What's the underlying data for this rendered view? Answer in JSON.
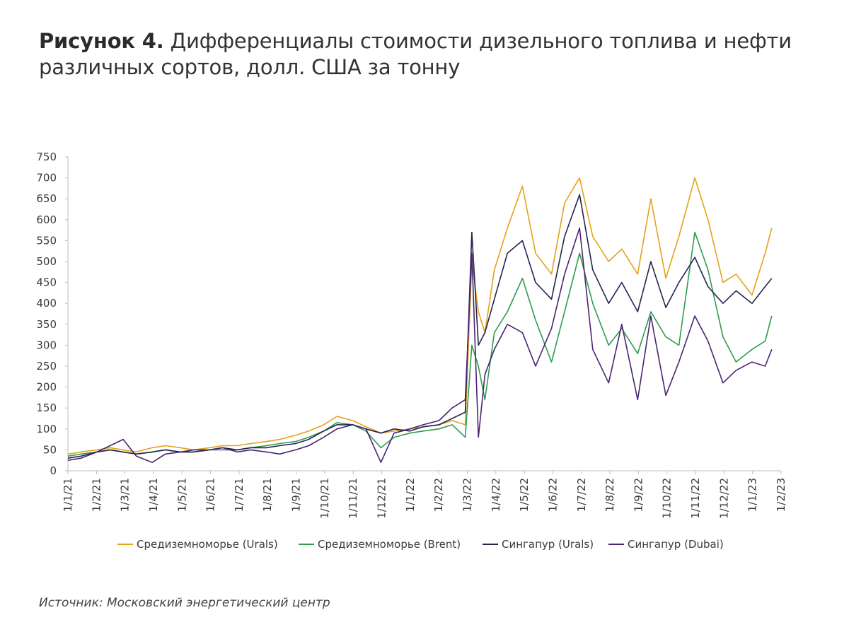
{
  "title": {
    "label": "Рисунок 4.",
    "text": "Дифференциалы стоимости дизельного топлива и нефти различных сортов, долл. США за тонну"
  },
  "source": "Источник: Московский энергетический центр",
  "chart_data": {
    "type": "line",
    "title": "Рисунок 4. Дифференциалы стоимости дизельного топлива и нефти различных сортов, долл. США за тонну",
    "xlabel": "",
    "ylabel": "",
    "ylim": [
      0,
      750
    ],
    "yticks": [
      0,
      50,
      100,
      150,
      200,
      250,
      300,
      350,
      400,
      450,
      500,
      550,
      600,
      650,
      700,
      750
    ],
    "xlim": [
      "2021-01-01",
      "2023-02-01"
    ],
    "xtick_labels": [
      "1/1/21",
      "1/2/21",
      "1/3/21",
      "1/4/21",
      "1/5/21",
      "1/6/21",
      "1/7/21",
      "1/8/21",
      "1/9/21",
      "1/10/21",
      "1/11/21",
      "1/12/21",
      "1/1/22",
      "1/2/22",
      "1/3/22",
      "1/4/22",
      "1/5/22",
      "1/6/22",
      "1/7/22",
      "1/8/22",
      "1/9/22",
      "1/10/22",
      "1/11/22",
      "1/12/22",
      "1/1/23",
      "1/2/23"
    ],
    "grid": false,
    "legend_position": "bottom",
    "x": [
      "2021-01-01",
      "2021-01-15",
      "2021-02-01",
      "2021-02-15",
      "2021-03-01",
      "2021-03-15",
      "2021-04-01",
      "2021-04-15",
      "2021-05-01",
      "2021-05-15",
      "2021-06-01",
      "2021-06-15",
      "2021-07-01",
      "2021-07-15",
      "2021-08-01",
      "2021-08-15",
      "2021-09-01",
      "2021-09-15",
      "2021-10-01",
      "2021-10-15",
      "2021-11-01",
      "2021-11-15",
      "2021-12-01",
      "2021-12-15",
      "2022-01-01",
      "2022-01-15",
      "2022-02-01",
      "2022-02-15",
      "2022-03-01",
      "2022-03-08",
      "2022-03-15",
      "2022-03-22",
      "2022-04-01",
      "2022-04-15",
      "2022-05-01",
      "2022-05-15",
      "2022-06-01",
      "2022-06-15",
      "2022-07-01",
      "2022-07-15",
      "2022-08-01",
      "2022-08-15",
      "2022-09-01",
      "2022-09-15",
      "2022-10-01",
      "2022-10-15",
      "2022-11-01",
      "2022-11-15",
      "2022-12-01",
      "2022-12-15",
      "2023-01-01",
      "2023-01-15",
      "2023-01-22"
    ],
    "series": [
      {
        "name": "Средиземноморье  (Urals)",
        "color": "#E3A21A",
        "values": [
          40,
          45,
          50,
          55,
          50,
          45,
          55,
          60,
          55,
          50,
          55,
          60,
          60,
          65,
          70,
          75,
          85,
          95,
          110,
          130,
          120,
          105,
          90,
          95,
          100,
          105,
          110,
          120,
          110,
          500,
          380,
          330,
          480,
          580,
          680,
          520,
          470,
          640,
          700,
          560,
          500,
          530,
          470,
          650,
          460,
          560,
          700,
          600,
          450,
          470,
          420,
          520,
          580
        ]
      },
      {
        "name": "Средиземноморье  (Brent)",
        "color": "#2E9C4E",
        "values": [
          35,
          40,
          45,
          50,
          45,
          40,
          45,
          50,
          45,
          45,
          50,
          50,
          50,
          55,
          60,
          65,
          70,
          80,
          95,
          115,
          110,
          95,
          55,
          80,
          90,
          95,
          100,
          110,
          80,
          300,
          250,
          170,
          330,
          380,
          460,
          360,
          260,
          380,
          520,
          400,
          300,
          340,
          280,
          380,
          320,
          300,
          570,
          480,
          320,
          260,
          290,
          310,
          370
        ]
      },
      {
        "name": "Сингапур  (Urals)",
        "color": "#23254D",
        "values": [
          30,
          35,
          45,
          50,
          45,
          40,
          45,
          50,
          45,
          45,
          50,
          55,
          50,
          55,
          55,
          60,
          65,
          75,
          95,
          110,
          110,
          100,
          90,
          100,
          95,
          105,
          110,
          125,
          140,
          570,
          300,
          330,
          410,
          520,
          550,
          450,
          410,
          560,
          660,
          480,
          400,
          450,
          380,
          500,
          390,
          450,
          510,
          440,
          400,
          430,
          400,
          440,
          460
        ]
      },
      {
        "name": "Сингапур  (Dubai)",
        "color": "#4A2470",
        "values": [
          25,
          30,
          45,
          60,
          75,
          35,
          20,
          40,
          45,
          50,
          50,
          55,
          45,
          50,
          45,
          40,
          50,
          60,
          80,
          100,
          110,
          100,
          20,
          90,
          100,
          110,
          120,
          150,
          170,
          520,
          80,
          230,
          290,
          350,
          330,
          250,
          340,
          470,
          580,
          290,
          210,
          350,
          170,
          370,
          180,
          260,
          370,
          310,
          210,
          240,
          260,
          250,
          290
        ]
      }
    ]
  }
}
